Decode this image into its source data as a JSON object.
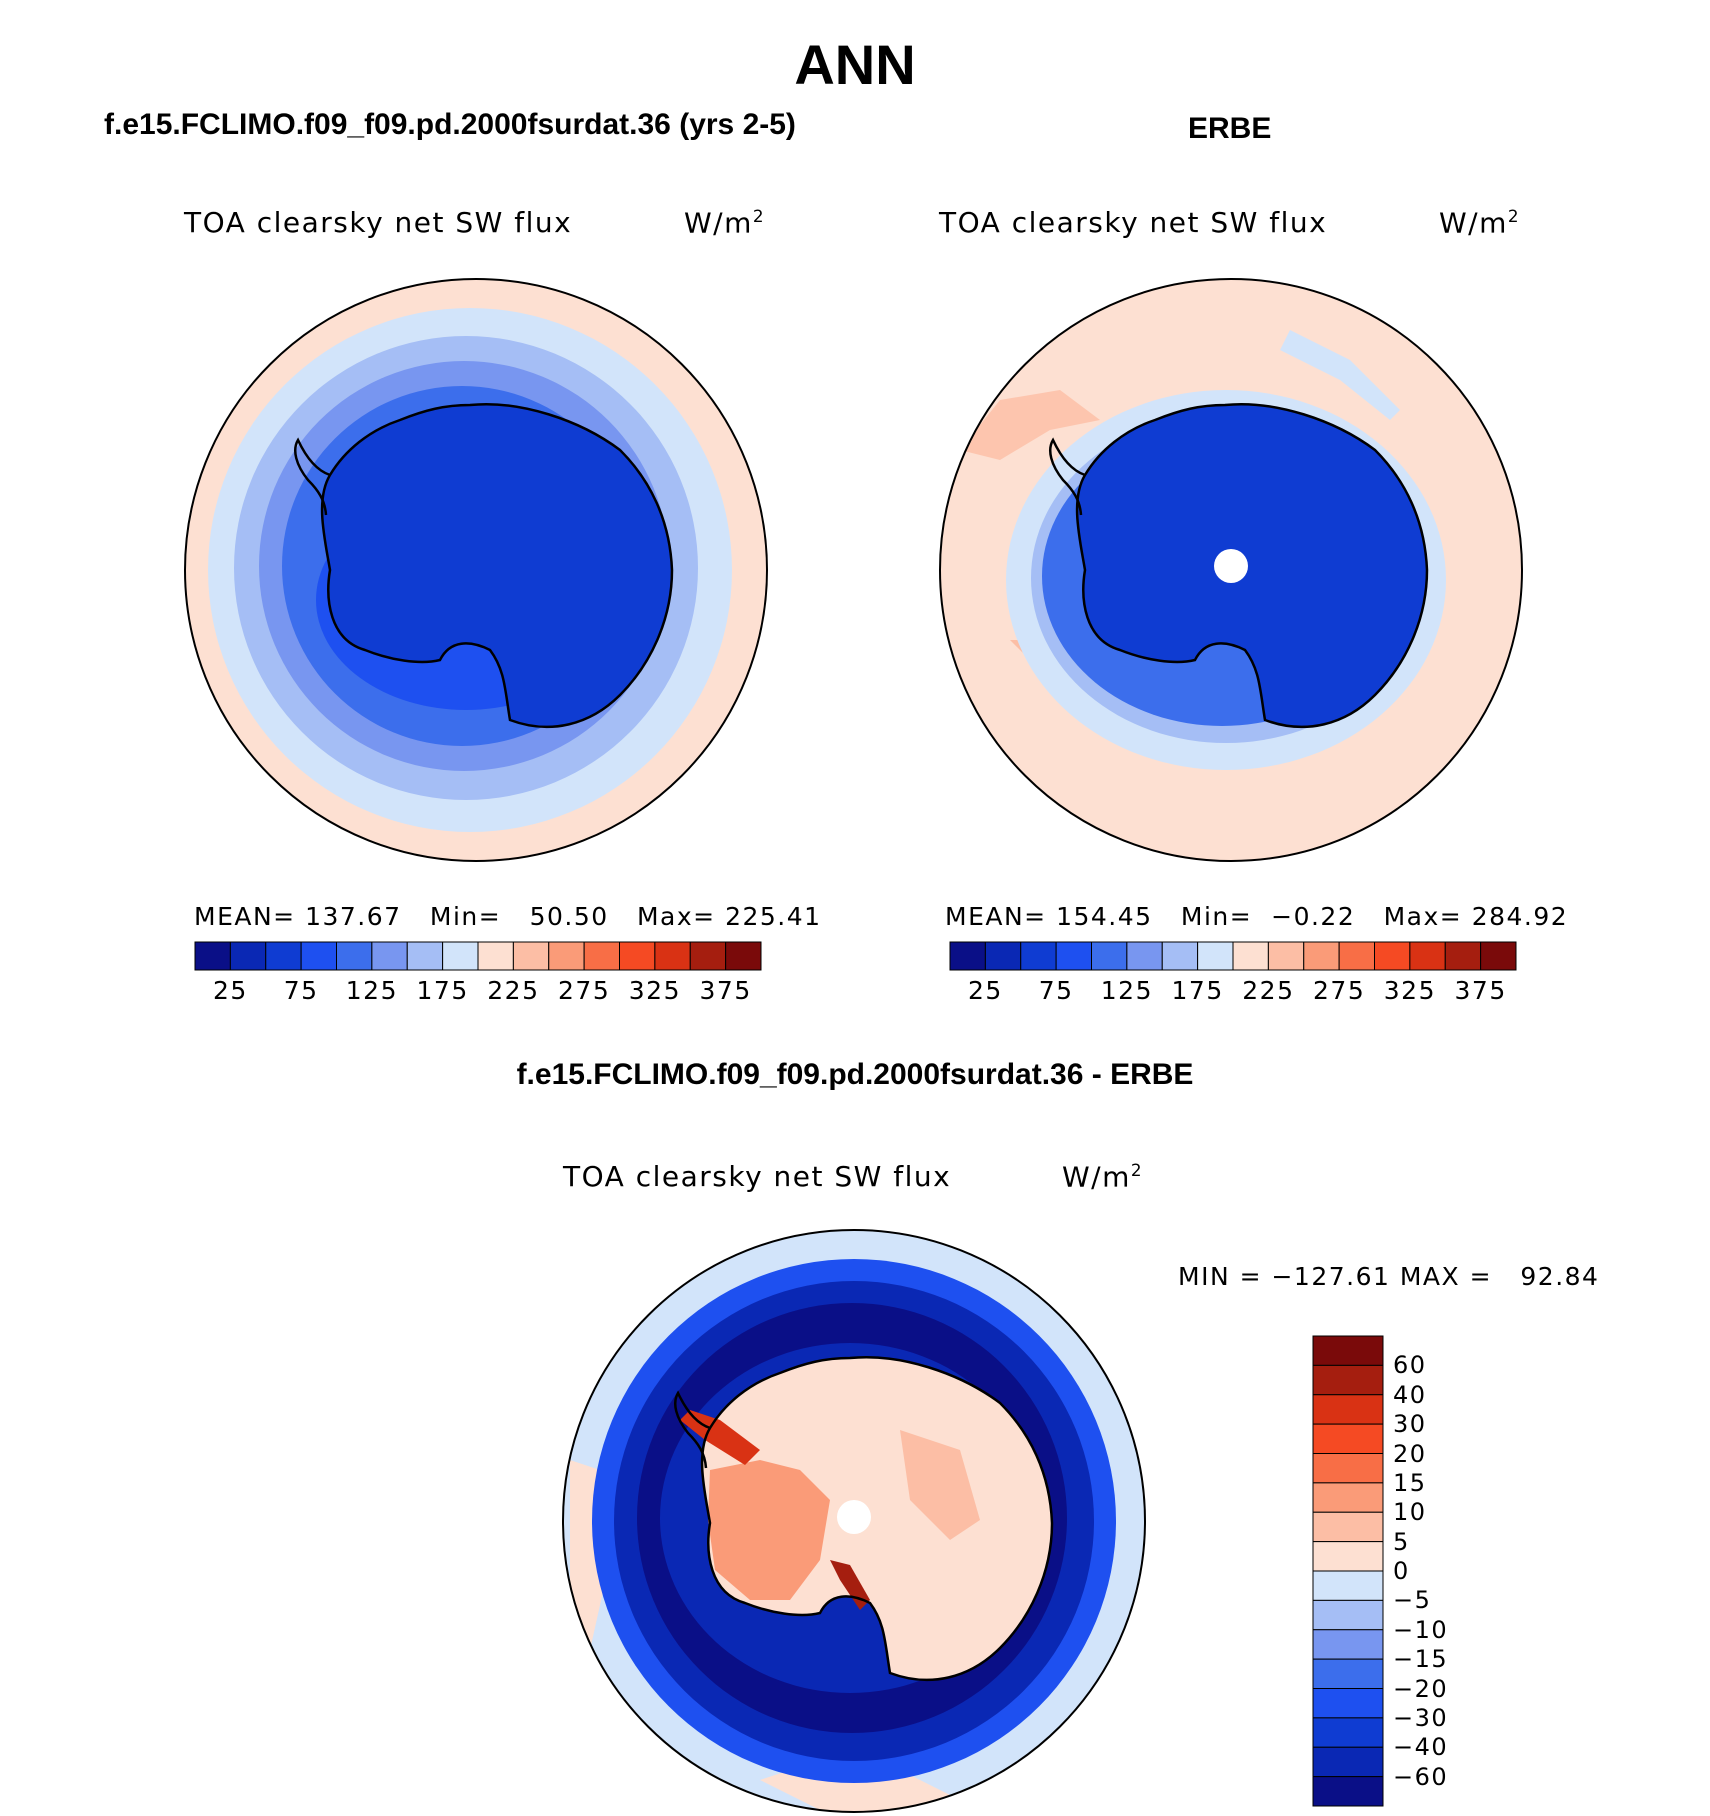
{
  "page": {
    "title": "ANN",
    "left_header": "f.e15.FCLIMO.f09_f09.pd.2000fsurdat.36 (yrs 2-5)",
    "right_header": "ERBE",
    "diff_header": "f.e15.FCLIMO.f09_f09.pd.2000fsurdat.36 - ERBE"
  },
  "panels": {
    "model": {
      "variable": "TOA clearsky net SW flux",
      "units": "W/m",
      "units_exp": "2",
      "mean_label": "MEAN=",
      "mean": "137.67",
      "min_label": "Min=",
      "min": "50.50",
      "max_label": "Max=",
      "max": "225.41"
    },
    "obs": {
      "variable": "TOA clearsky net SW flux",
      "units": "W/m",
      "units_exp": "2",
      "mean_label": "MEAN=",
      "mean": "154.45",
      "min_label": "Min=",
      "min": "−0.22",
      "max_label": "Max=",
      "max": "284.92"
    },
    "diff": {
      "variable": "TOA clearsky net SW flux",
      "units": "W/m",
      "units_exp": "2",
      "minmax": "MIN = −127.61 MAX =   92.84"
    }
  },
  "colorbars": {
    "field_colors": [
      "#0a0f87",
      "#0a28b4",
      "#0f3cd2",
      "#1e50f0",
      "#3c6eec",
      "#7896f0",
      "#a5bef5",
      "#d2e4fa",
      "#fde0d2",
      "#fcbea5",
      "#fa9b78",
      "#f86e46",
      "#f54a23",
      "#d93214",
      "#a51e0f",
      "#7a0a0a"
    ],
    "field_ticks": [
      "25",
      "75",
      "125",
      "175",
      "225",
      "275",
      "325",
      "375"
    ],
    "diff_colors": [
      "#7a0a0a",
      "#a51e0f",
      "#d93214",
      "#f54a23",
      "#f86e46",
      "#fa9b78",
      "#fcbea5",
      "#fde0d2",
      "#d2e4fa",
      "#a5bef5",
      "#7896f0",
      "#3c6eec",
      "#1e50f0",
      "#0f3cd2",
      "#0a28b4",
      "#0a0f87"
    ],
    "diff_ticks": [
      "60",
      "40",
      "30",
      "20",
      "15",
      "10",
      "5",
      "0",
      "−5",
      "−10",
      "−15",
      "−20",
      "−30",
      "−40",
      "−60"
    ]
  }
}
